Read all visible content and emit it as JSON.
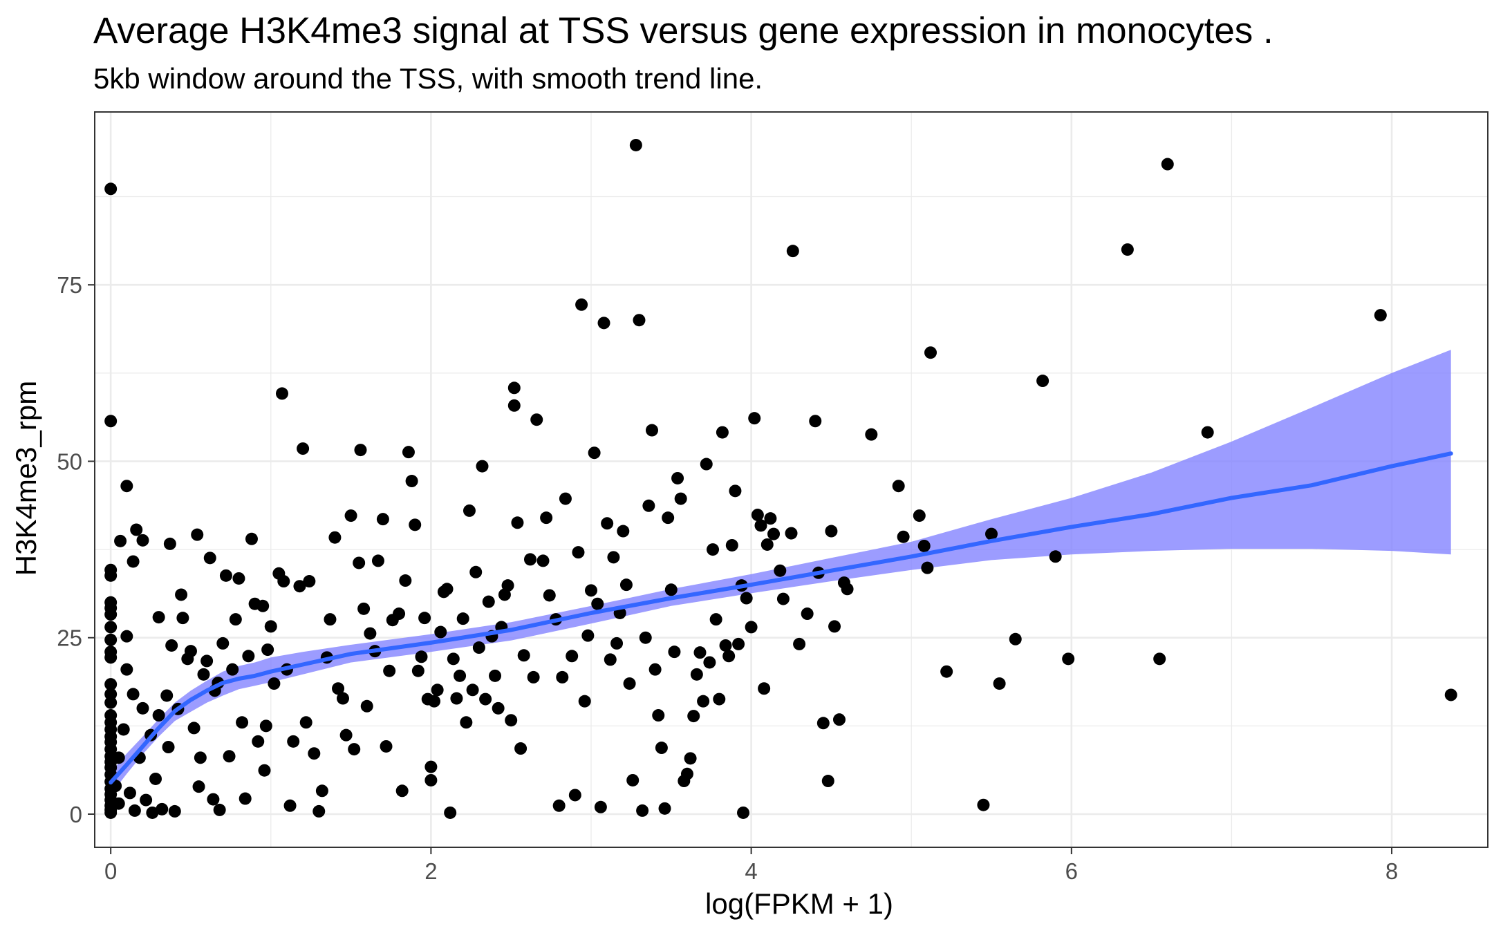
{
  "chart_data": {
    "type": "scatter",
    "title": "Average H3K4me3 signal at TSS versus gene expression in monocytes .",
    "subtitle": "5kb window around the TSS, with smooth trend line.",
    "xlabel": "log(FPKM + 1)",
    "ylabel": "H3K4me3_rpm",
    "xlim": [
      -0.1,
      8.6
    ],
    "ylim": [
      -4.7,
      99.5
    ],
    "x_ticks": [
      0,
      2,
      4,
      6,
      8
    ],
    "y_ticks": [
      0,
      25,
      50,
      75
    ],
    "x_tick_labels": [
      "0",
      "2",
      "4",
      "6",
      "8"
    ],
    "y_tick_labels": [
      "0",
      "25",
      "50",
      "75"
    ],
    "grid": true,
    "colors": {
      "points": "#000000",
      "trend_line": "#3366ff",
      "confidence_band": "#8080ff",
      "grid": "#ebebeb",
      "panel_border": "#333333"
    },
    "trend": {
      "x": [
        0.0,
        0.1,
        0.2,
        0.3,
        0.4,
        0.5,
        0.6,
        0.7,
        0.8,
        0.9,
        1.0,
        1.2,
        1.5,
        2.0,
        2.5,
        3.0,
        3.5,
        4.0,
        4.5,
        5.0,
        5.5,
        6.0,
        6.5,
        7.0,
        7.5,
        8.0,
        8.37
      ],
      "y": [
        4.5,
        7.0,
        9.6,
        12.2,
        14.6,
        16.2,
        17.5,
        18.6,
        19.2,
        19.6,
        20.2,
        21.2,
        22.7,
        24.3,
        26.1,
        28.5,
        30.6,
        32.5,
        34.5,
        36.5,
        38.7,
        40.7,
        42.5,
        44.8,
        46.6,
        49.3,
        51.1
      ],
      "lower": [
        2.8,
        5.7,
        8.5,
        11.0,
        13.2,
        14.5,
        15.8,
        16.8,
        17.7,
        18.2,
        18.7,
        19.8,
        21.5,
        23.0,
        24.6,
        27.0,
        29.5,
        31.3,
        33.0,
        34.6,
        36.0,
        36.8,
        37.3,
        37.6,
        37.6,
        37.3,
        36.8
      ],
      "upper": [
        5.9,
        8.6,
        11.0,
        13.5,
        15.8,
        17.5,
        18.9,
        20.2,
        21.0,
        21.5,
        22.2,
        23.0,
        24.0,
        25.5,
        27.2,
        29.5,
        31.9,
        34.0,
        36.3,
        38.6,
        41.8,
        44.8,
        48.4,
        52.8,
        57.6,
        62.5,
        65.8
      ]
    },
    "points": [
      [
        0.0,
        88.6
      ],
      [
        0.0,
        55.7
      ],
      [
        0.0,
        34.6
      ],
      [
        0.0,
        33.8
      ],
      [
        0.0,
        30.0
      ],
      [
        0.0,
        29.2
      ],
      [
        0.0,
        28.3
      ],
      [
        0.0,
        26.5
      ],
      [
        0.0,
        24.7
      ],
      [
        0.0,
        23.0
      ],
      [
        0.0,
        22.2
      ],
      [
        0.0,
        18.4
      ],
      [
        0.0,
        17.0
      ],
      [
        0.0,
        15.8
      ],
      [
        0.0,
        14.0
      ],
      [
        0.0,
        13.0
      ],
      [
        0.0,
        12.0
      ],
      [
        0.0,
        11.0
      ],
      [
        0.0,
        10.2
      ],
      [
        0.0,
        9.2
      ],
      [
        0.0,
        8.2
      ],
      [
        0.0,
        7.4
      ],
      [
        0.0,
        6.6
      ],
      [
        0.0,
        5.6
      ],
      [
        0.0,
        4.6
      ],
      [
        0.0,
        3.6
      ],
      [
        0.0,
        2.8
      ],
      [
        0.0,
        2.0
      ],
      [
        0.0,
        1.2
      ],
      [
        0.0,
        0.6
      ],
      [
        0.0,
        0.2
      ],
      [
        0.03,
        4.0
      ],
      [
        0.05,
        1.5
      ],
      [
        0.05,
        8.0
      ],
      [
        0.06,
        38.7
      ],
      [
        0.08,
        12.0
      ],
      [
        0.1,
        46.5
      ],
      [
        0.1,
        25.2
      ],
      [
        0.1,
        20.5
      ],
      [
        0.12,
        3.0
      ],
      [
        0.14,
        35.8
      ],
      [
        0.14,
        17.0
      ],
      [
        0.15,
        0.5
      ],
      [
        0.16,
        40.3
      ],
      [
        0.18,
        8.0
      ],
      [
        0.2,
        38.8
      ],
      [
        0.2,
        15.0
      ],
      [
        0.22,
        2.0
      ],
      [
        0.25,
        11.2
      ],
      [
        0.26,
        0.2
      ],
      [
        0.28,
        5.0
      ],
      [
        0.3,
        27.9
      ],
      [
        0.3,
        14.0
      ],
      [
        0.32,
        0.7
      ],
      [
        0.35,
        16.8
      ],
      [
        0.36,
        9.5
      ],
      [
        0.37,
        38.3
      ],
      [
        0.38,
        23.9
      ],
      [
        0.4,
        0.4
      ],
      [
        0.42,
        14.9
      ],
      [
        0.44,
        31.1
      ],
      [
        0.45,
        27.8
      ],
      [
        0.48,
        22.0
      ],
      [
        0.5,
        23.1
      ],
      [
        0.52,
        12.2
      ],
      [
        0.54,
        39.6
      ],
      [
        0.55,
        3.9
      ],
      [
        0.56,
        8.0
      ],
      [
        0.58,
        19.8
      ],
      [
        0.6,
        21.7
      ],
      [
        0.62,
        36.3
      ],
      [
        0.64,
        2.1
      ],
      [
        0.65,
        17.5
      ],
      [
        0.67,
        18.6
      ],
      [
        0.68,
        0.6
      ],
      [
        0.7,
        24.2
      ],
      [
        0.72,
        33.8
      ],
      [
        0.74,
        8.2
      ],
      [
        0.76,
        20.5
      ],
      [
        0.78,
        27.6
      ],
      [
        0.8,
        33.4
      ],
      [
        0.82,
        13.0
      ],
      [
        0.84,
        2.2
      ],
      [
        0.86,
        22.4
      ],
      [
        0.88,
        39.0
      ],
      [
        0.9,
        29.8
      ],
      [
        0.92,
        10.3
      ],
      [
        0.95,
        29.5
      ],
      [
        0.96,
        6.2
      ],
      [
        0.97,
        12.5
      ],
      [
        0.98,
        23.3
      ],
      [
        1.0,
        26.6
      ],
      [
        1.02,
        18.5
      ],
      [
        1.05,
        34.1
      ],
      [
        1.07,
        59.6
      ],
      [
        1.08,
        33.0
      ],
      [
        1.1,
        20.5
      ],
      [
        1.12,
        1.2
      ],
      [
        1.14,
        10.3
      ],
      [
        1.18,
        32.3
      ],
      [
        1.2,
        51.8
      ],
      [
        1.22,
        13.0
      ],
      [
        1.24,
        33.0
      ],
      [
        1.27,
        8.6
      ],
      [
        1.3,
        0.4
      ],
      [
        1.32,
        3.3
      ],
      [
        1.35,
        22.2
      ],
      [
        1.37,
        27.6
      ],
      [
        1.4,
        39.2
      ],
      [
        1.42,
        17.8
      ],
      [
        1.45,
        16.4
      ],
      [
        1.47,
        11.2
      ],
      [
        1.5,
        42.3
      ],
      [
        1.52,
        9.2
      ],
      [
        1.55,
        35.6
      ],
      [
        1.56,
        51.6
      ],
      [
        1.58,
        29.1
      ],
      [
        1.6,
        15.3
      ],
      [
        1.62,
        25.6
      ],
      [
        1.65,
        23.1
      ],
      [
        1.67,
        35.9
      ],
      [
        1.7,
        41.8
      ],
      [
        1.72,
        9.6
      ],
      [
        1.74,
        20.3
      ],
      [
        1.76,
        27.5
      ],
      [
        1.8,
        28.4
      ],
      [
        1.82,
        3.3
      ],
      [
        1.84,
        33.1
      ],
      [
        1.86,
        51.3
      ],
      [
        1.88,
        47.2
      ],
      [
        1.9,
        41.0
      ],
      [
        1.92,
        20.3
      ],
      [
        1.94,
        22.3
      ],
      [
        1.96,
        27.8
      ],
      [
        1.98,
        16.3
      ],
      [
        2.0,
        6.7
      ],
      [
        2.0,
        4.8
      ],
      [
        2.02,
        16.0
      ],
      [
        2.04,
        17.6
      ],
      [
        2.06,
        25.8
      ],
      [
        2.08,
        31.5
      ],
      [
        2.1,
        31.9
      ],
      [
        2.12,
        0.2
      ],
      [
        2.14,
        22.0
      ],
      [
        2.16,
        16.4
      ],
      [
        2.18,
        19.6
      ],
      [
        2.2,
        27.7
      ],
      [
        2.22,
        13.0
      ],
      [
        2.24,
        43.0
      ],
      [
        2.26,
        17.6
      ],
      [
        2.28,
        34.3
      ],
      [
        2.3,
        23.6
      ],
      [
        2.32,
        49.3
      ],
      [
        2.34,
        16.3
      ],
      [
        2.36,
        30.1
      ],
      [
        2.38,
        25.2
      ],
      [
        2.4,
        19.6
      ],
      [
        2.42,
        15.0
      ],
      [
        2.44,
        26.5
      ],
      [
        2.46,
        31.1
      ],
      [
        2.48,
        32.4
      ],
      [
        2.5,
        13.3
      ],
      [
        2.52,
        60.4
      ],
      [
        2.52,
        57.9
      ],
      [
        2.54,
        41.3
      ],
      [
        2.56,
        9.3
      ],
      [
        2.58,
        22.5
      ],
      [
        2.62,
        36.1
      ],
      [
        2.64,
        19.4
      ],
      [
        2.66,
        55.9
      ],
      [
        2.7,
        35.9
      ],
      [
        2.72,
        42.0
      ],
      [
        2.74,
        31.0
      ],
      [
        2.78,
        27.6
      ],
      [
        2.8,
        1.2
      ],
      [
        2.82,
        19.4
      ],
      [
        2.84,
        44.7
      ],
      [
        2.88,
        22.4
      ],
      [
        2.9,
        2.7
      ],
      [
        2.92,
        37.1
      ],
      [
        2.94,
        72.2
      ],
      [
        2.96,
        16.0
      ],
      [
        2.98,
        25.3
      ],
      [
        3.0,
        31.7
      ],
      [
        3.02,
        51.2
      ],
      [
        3.04,
        29.8
      ],
      [
        3.06,
        1.0
      ],
      [
        3.08,
        69.6
      ],
      [
        3.1,
        41.2
      ],
      [
        3.12,
        21.9
      ],
      [
        3.14,
        36.4
      ],
      [
        3.16,
        24.2
      ],
      [
        3.18,
        28.5
      ],
      [
        3.2,
        40.1
      ],
      [
        3.22,
        32.5
      ],
      [
        3.24,
        18.5
      ],
      [
        3.26,
        4.8
      ],
      [
        3.28,
        94.8
      ],
      [
        3.3,
        70.0
      ],
      [
        3.32,
        0.5
      ],
      [
        3.34,
        25.0
      ],
      [
        3.36,
        43.7
      ],
      [
        3.38,
        54.4
      ],
      [
        3.4,
        20.5
      ],
      [
        3.42,
        14.0
      ],
      [
        3.44,
        9.4
      ],
      [
        3.46,
        0.8
      ],
      [
        3.48,
        42.0
      ],
      [
        3.5,
        31.8
      ],
      [
        3.52,
        23.0
      ],
      [
        3.54,
        47.6
      ],
      [
        3.56,
        44.7
      ],
      [
        3.58,
        4.7
      ],
      [
        3.6,
        5.7
      ],
      [
        3.62,
        7.9
      ],
      [
        3.64,
        13.9
      ],
      [
        3.66,
        19.8
      ],
      [
        3.68,
        22.9
      ],
      [
        3.7,
        16.0
      ],
      [
        3.72,
        49.6
      ],
      [
        3.74,
        21.5
      ],
      [
        3.76,
        37.5
      ],
      [
        3.78,
        27.6
      ],
      [
        3.8,
        16.3
      ],
      [
        3.82,
        54.1
      ],
      [
        3.84,
        23.9
      ],
      [
        3.86,
        22.4
      ],
      [
        3.88,
        38.1
      ],
      [
        3.9,
        45.8
      ],
      [
        3.92,
        24.1
      ],
      [
        3.94,
        32.4
      ],
      [
        3.95,
        0.2
      ],
      [
        3.97,
        30.6
      ],
      [
        4.0,
        26.5
      ],
      [
        4.02,
        56.1
      ],
      [
        4.04,
        42.4
      ],
      [
        4.06,
        40.9
      ],
      [
        4.08,
        17.8
      ],
      [
        4.1,
        38.2
      ],
      [
        4.12,
        41.9
      ],
      [
        4.14,
        39.7
      ],
      [
        4.18,
        34.5
      ],
      [
        4.2,
        30.5
      ],
      [
        4.25,
        39.8
      ],
      [
        4.26,
        79.8
      ],
      [
        4.3,
        24.1
      ],
      [
        4.35,
        28.4
      ],
      [
        4.4,
        55.7
      ],
      [
        4.42,
        34.2
      ],
      [
        4.45,
        12.9
      ],
      [
        4.48,
        4.7
      ],
      [
        4.5,
        40.1
      ],
      [
        4.52,
        26.6
      ],
      [
        4.55,
        13.4
      ],
      [
        4.58,
        32.8
      ],
      [
        4.6,
        31.9
      ],
      [
        4.75,
        53.8
      ],
      [
        4.92,
        46.5
      ],
      [
        4.95,
        39.3
      ],
      [
        5.05,
        42.3
      ],
      [
        5.08,
        38.0
      ],
      [
        5.1,
        34.9
      ],
      [
        5.12,
        65.4
      ],
      [
        5.22,
        20.2
      ],
      [
        5.45,
        1.3
      ],
      [
        5.5,
        39.7
      ],
      [
        5.55,
        18.5
      ],
      [
        5.65,
        24.8
      ],
      [
        5.82,
        61.4
      ],
      [
        5.9,
        36.5
      ],
      [
        5.98,
        22.0
      ],
      [
        6.35,
        80.0
      ],
      [
        6.55,
        22.0
      ],
      [
        6.6,
        92.1
      ],
      [
        6.85,
        54.1
      ],
      [
        7.93,
        70.7
      ],
      [
        8.37,
        16.9
      ]
    ]
  }
}
